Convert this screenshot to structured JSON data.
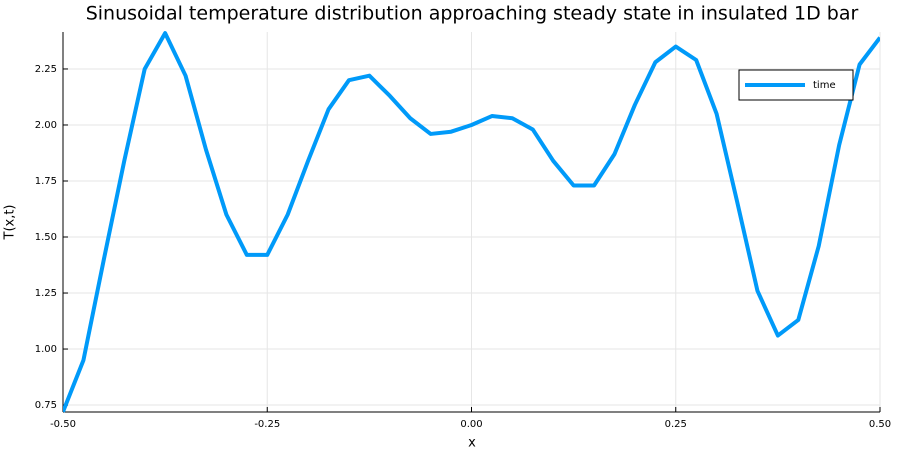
{
  "chart_data": {
    "type": "line",
    "title": "Sinusoidal temperature distribution approaching steady state in insulated 1D bar",
    "x_label": "x",
    "y_label": "T(x,t)",
    "x": [
      -0.5,
      -0.475,
      -0.45,
      -0.425,
      -0.4,
      -0.375,
      -0.35,
      -0.325,
      -0.3,
      -0.275,
      -0.25,
      -0.225,
      -0.2,
      -0.175,
      -0.15,
      -0.125,
      -0.1,
      -0.075,
      -0.05,
      -0.025,
      0,
      0.025,
      0.05,
      0.075,
      0.1,
      0.125,
      0.15,
      0.175,
      0.2,
      0.225,
      0.25,
      0.275,
      0.3,
      0.325,
      0.35,
      0.375,
      0.4,
      0.425,
      0.45,
      0.475,
      0.5
    ],
    "series": [
      {
        "name": "time",
        "color": "#009af9",
        "values": [
          0.72,
          0.95,
          1.4,
          1.84,
          2.25,
          2.41,
          2.22,
          1.89,
          1.6,
          1.42,
          1.42,
          1.6,
          1.84,
          2.07,
          2.2,
          2.22,
          2.13,
          2.03,
          1.96,
          1.97,
          2.0,
          2.04,
          2.03,
          1.98,
          1.84,
          1.73,
          1.73,
          1.87,
          2.09,
          2.28,
          2.35,
          2.29,
          2.05,
          1.66,
          1.26,
          1.06,
          1.13,
          1.46,
          1.91,
          2.27,
          2.39
        ]
      }
    ],
    "xlim": [
      -0.5,
      0.5
    ],
    "xticks": [
      {
        "value": -0.5,
        "label": "-0.50"
      },
      {
        "value": -0.25,
        "label": "-0.25"
      },
      {
        "value": 0,
        "label": "0.00"
      },
      {
        "value": 0.25,
        "label": "0.25"
      },
      {
        "value": 0.5,
        "label": "0.50"
      }
    ],
    "ylim": [
      0.719,
      2.415
    ],
    "yticks": [
      {
        "value": 0.75,
        "label": "0.75"
      },
      {
        "value": 1,
        "label": "1.00"
      },
      {
        "value": 1.25,
        "label": "1.25"
      },
      {
        "value": 1.5,
        "label": "1.50"
      },
      {
        "value": 1.75,
        "label": "1.75"
      },
      {
        "value": 2,
        "label": "2.00"
      },
      {
        "value": 2.25,
        "label": "2.25"
      }
    ],
    "grid": true,
    "legend": "top-right"
  }
}
